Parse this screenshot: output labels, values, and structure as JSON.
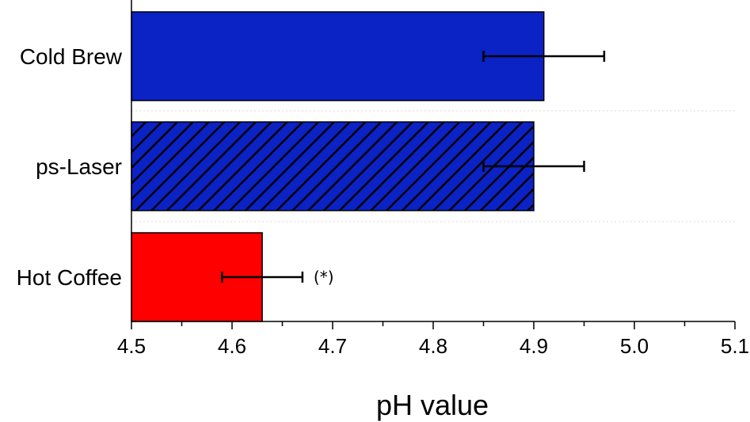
{
  "chart_data": {
    "type": "bar",
    "orientation": "horizontal",
    "xlabel": "pH value",
    "ylabel": "",
    "xlim": [
      4.5,
      5.1
    ],
    "xticks": [
      "4.5",
      "4.6",
      "4.7",
      "4.8",
      "4.9",
      "5.0",
      "5.1"
    ],
    "categories": [
      "Cold Brew",
      "ps-Laser",
      "Hot Coffee"
    ],
    "values": [
      4.91,
      4.9,
      4.63
    ],
    "error_low": [
      4.85,
      4.85,
      4.59
    ],
    "error_high": [
      4.97,
      4.95,
      4.67
    ],
    "bar_colors": [
      "#0b22c4",
      "#0b22c4",
      "#ff0000"
    ],
    "bar_patterns": [
      "solid",
      "hatched",
      "solid"
    ],
    "annotations": [
      "",
      "",
      "(*)"
    ],
    "grid": "dotted horizontal separators"
  }
}
